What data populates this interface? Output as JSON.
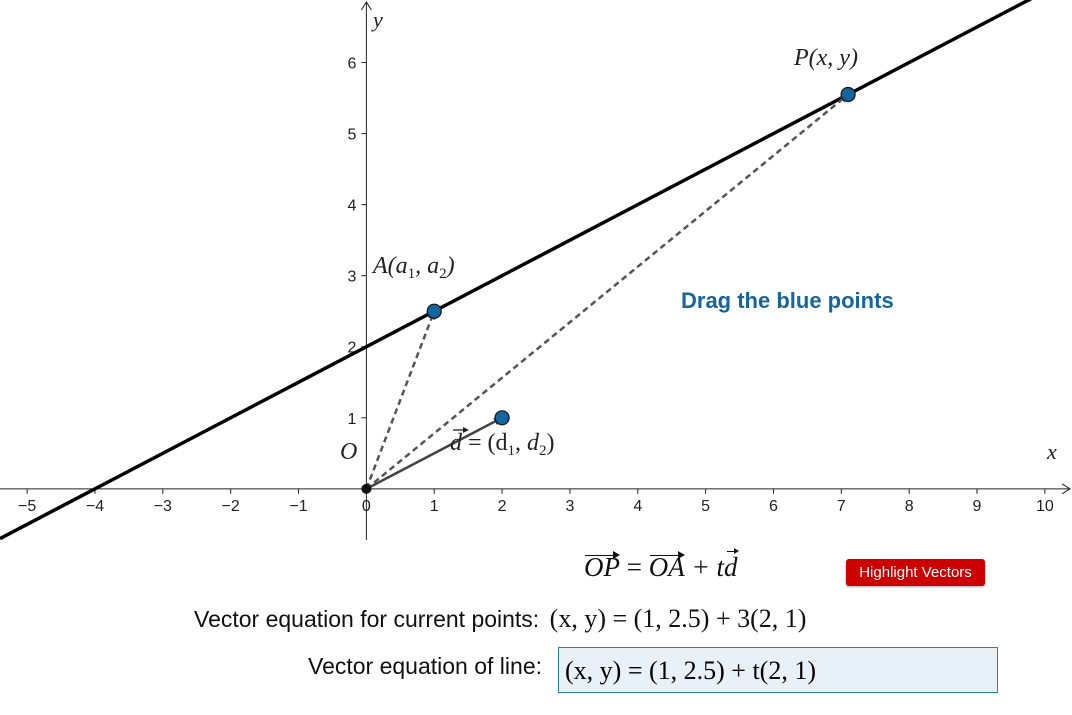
{
  "graph": {
    "x_axis_label": "x",
    "y_axis_label": "y",
    "x_range": [
      -5.4,
      10.4
    ],
    "y_range": [
      -0.72,
      6.88
    ],
    "x_ticks": [
      -5,
      -4,
      -3,
      -2,
      -1,
      0,
      1,
      2,
      3,
      4,
      5,
      6,
      7,
      8,
      9,
      10
    ],
    "y_ticks": [
      1,
      2,
      3,
      4,
      5,
      6
    ],
    "origin_label": "O",
    "line": {
      "slope": 0.5,
      "intercept": 2
    },
    "points": {
      "A": {
        "x": 1,
        "y": 2.5,
        "label": "A(a",
        "label_sub1": "1",
        "label_mid": ", a",
        "label_sub2": "2",
        "label_end": ")"
      },
      "D": {
        "x": 2,
        "y": 1,
        "label_vec": "d",
        "label_eq": " = (d",
        "label_sub1": "1",
        "label_mid": ", d",
        "label_sub2": "2",
        "label_end": ")"
      },
      "P": {
        "x": 7.1,
        "y": 5.55,
        "label": "P(x, y)"
      }
    },
    "hint_text": "Drag the blue points",
    "colors": {
      "point_fill": "#1565a0",
      "hint": "#1565a0",
      "line": "#000000",
      "vector": "#444444",
      "dashed": "#555555"
    }
  },
  "formula": {
    "op": "OP",
    "eq": " = ",
    "oa": "OA",
    "plus_t": " + t",
    "d": "d"
  },
  "button": {
    "label": "Highlight Vectors",
    "color": "#cc0000"
  },
  "equations": {
    "current_label": "Vector equation for current points:",
    "current_value": "(x, y) = (1, 2.5) + 3(2, 1)",
    "line_label": "Vector equation of line:",
    "line_value": "(x, y) = (1, 2.5) + t(2, 1)"
  }
}
